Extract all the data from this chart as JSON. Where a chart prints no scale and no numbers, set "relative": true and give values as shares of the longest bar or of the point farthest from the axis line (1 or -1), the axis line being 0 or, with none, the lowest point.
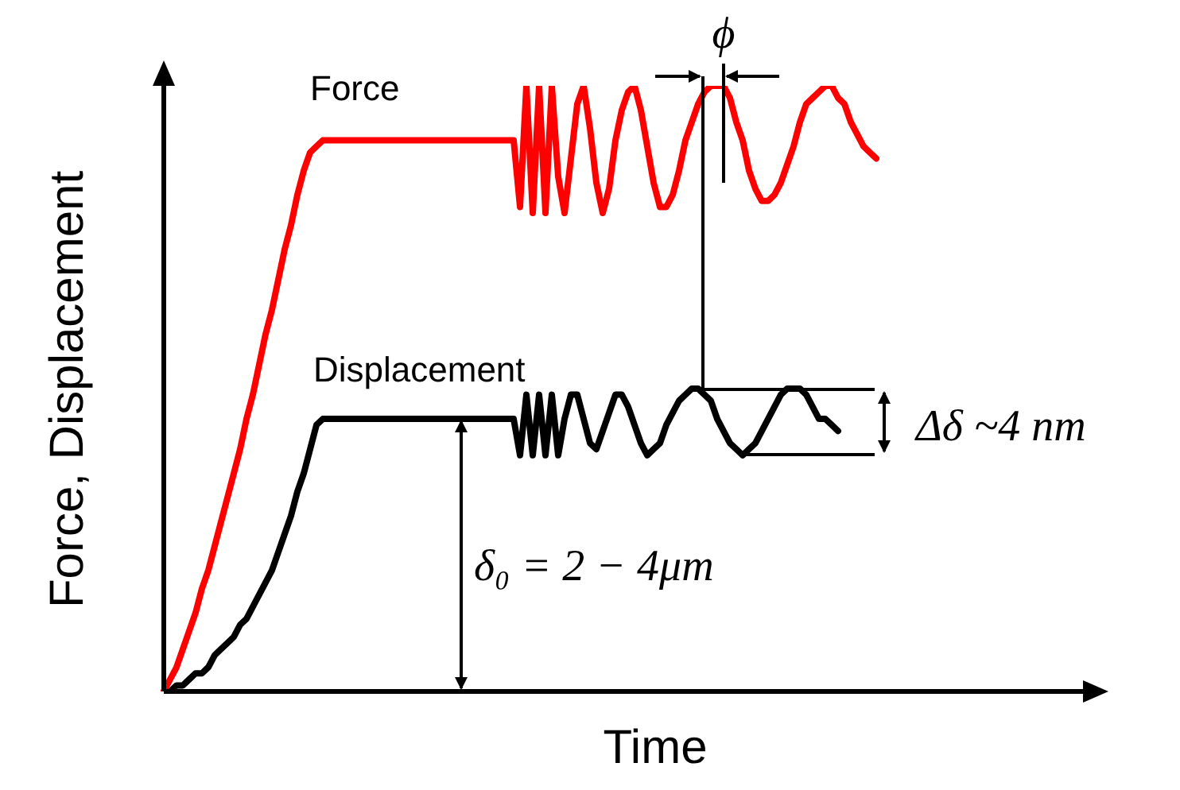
{
  "chart_data": {
    "type": "line",
    "relative": true,
    "marker": "none",
    "line_style": "solid",
    "xlabel": "Time",
    "ylabel": "Force, Displacement",
    "categories": [
      null,
      null,
      null,
      null,
      null,
      null,
      null,
      null,
      null,
      null,
      null,
      null,
      null,
      null,
      null,
      null,
      null,
      null,
      null,
      null,
      null,
      null,
      null,
      null,
      null,
      null,
      null,
      null,
      null,
      null,
      null,
      null,
      null,
      null,
      null,
      null,
      null,
      null,
      null,
      null,
      null,
      null,
      null,
      null,
      null,
      null,
      null,
      null,
      null,
      null,
      null,
      null,
      null,
      null,
      null,
      null,
      null,
      null,
      null,
      null,
      null,
      null,
      null,
      null,
      null,
      null,
      null,
      null,
      null,
      null,
      null,
      null,
      null,
      null,
      null,
      null,
      null,
      null,
      null,
      null,
      null,
      null,
      null,
      null,
      null,
      null,
      null,
      null,
      null,
      null,
      null,
      null,
      null,
      null,
      null,
      null,
      null,
      null,
      null,
      null,
      null,
      null,
      null,
      null,
      null,
      null,
      null,
      null,
      null,
      null,
      null,
      null,
      null
    ],
    "series": [
      {
        "name": "Force",
        "color": "#ff0000",
        "values": [
          0,
          0.02,
          0.04,
          0.07,
          0.1,
          0.13,
          0.17,
          0.2,
          0.24,
          0.28,
          0.32,
          0.36,
          0.4,
          0.45,
          0.49,
          0.54,
          0.59,
          0.63,
          0.68,
          0.73,
          0.77,
          0.82,
          0.86,
          0.89,
          0.9,
          0.91,
          0.91,
          0.91,
          0.91,
          0.91,
          0.91,
          0.91,
          0.91,
          0.91,
          0.91,
          0.91,
          0.91,
          0.91,
          0.91,
          0.91,
          0.91,
          0.91,
          0.91,
          0.91,
          0.91,
          0.91,
          0.91,
          0.91,
          0.91,
          0.91,
          0.91,
          0.91,
          0.91,
          0.91,
          0.91,
          0.91,
          0.8,
          1,
          0.79,
          1,
          0.79,
          1,
          0.85,
          0.79,
          0.88,
          0.97,
          1,
          0.93,
          0.84,
          0.79,
          0.83,
          0.91,
          0.96,
          0.99,
          1,
          0.96,
          0.9,
          0.84,
          0.8,
          0.8,
          0.82,
          0.86,
          0.91,
          0.94,
          0.97,
          0.99,
          1,
          1,
          1,
          0.98,
          0.94,
          0.91,
          0.86,
          0.83,
          0.81,
          0.81,
          0.82,
          0.84,
          0.87,
          0.9,
          0.94,
          0.97,
          0.98,
          0.99,
          1,
          1,
          0.98,
          0.97,
          0.94,
          0.92,
          0.9,
          0.89,
          0.88
        ]
      },
      {
        "name": "Displacement",
        "color": "#000000",
        "values": [
          0,
          0,
          0.01,
          0.01,
          0.02,
          0.03,
          0.03,
          0.04,
          0.06,
          0.07,
          0.08,
          0.09,
          0.11,
          0.12,
          0.14,
          0.16,
          0.18,
          0.2,
          0.23,
          0.26,
          0.29,
          0.33,
          0.36,
          0.4,
          0.44,
          0.45,
          0.45,
          0.45,
          0.45,
          0.45,
          0.45,
          0.45,
          0.45,
          0.45,
          0.45,
          0.45,
          0.45,
          0.45,
          0.45,
          0.45,
          0.45,
          0.45,
          0.45,
          0.45,
          0.45,
          0.45,
          0.45,
          0.45,
          0.45,
          0.45,
          0.45,
          0.45,
          0.45,
          0.45,
          0.45,
          0.45,
          0.39,
          0.49,
          0.39,
          0.49,
          0.39,
          0.49,
          0.39,
          0.45,
          0.49,
          0.49,
          0.45,
          0.41,
          0.4,
          0.43,
          0.46,
          0.49,
          0.49,
          0.47,
          0.44,
          0.41,
          0.39,
          0.4,
          0.41,
          0.44,
          0.46,
          0.48,
          0.49,
          0.5,
          0.5,
          0.49,
          0.48,
          0.45,
          0.43,
          0.41,
          0.4,
          0.39,
          0.4,
          0.41,
          0.43,
          0.45,
          0.47,
          0.49,
          0.5,
          0.5,
          0.5,
          0.49,
          0.47,
          0.45,
          0.45,
          0.44,
          0.43,
          null,
          null,
          null,
          null,
          null,
          null
        ]
      }
    ],
    "annotations": [
      "ϕ",
      "Δδ ~4 nm",
      "δ₀ = 2 − 4μm"
    ]
  }
}
